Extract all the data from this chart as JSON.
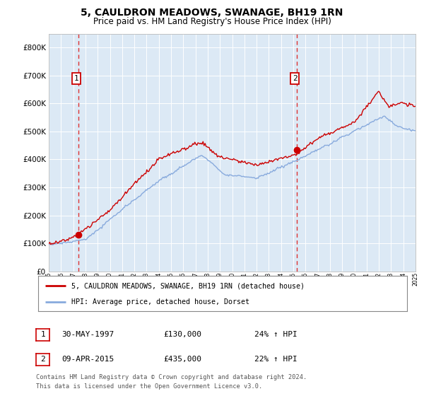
{
  "title": "5, CAULDRON MEADOWS, SWANAGE, BH19 1RN",
  "subtitle": "Price paid vs. HM Land Registry's House Price Index (HPI)",
  "plot_bg_color": "#dce9f5",
  "x_start_year": 1995,
  "x_end_year": 2025,
  "ylim": [
    0,
    850000
  ],
  "yticks": [
    0,
    100000,
    200000,
    300000,
    400000,
    500000,
    600000,
    700000,
    800000
  ],
  "sale1_year": 1997.41,
  "sale1_price": 130000,
  "sale2_year": 2015.27,
  "sale2_price": 435000,
  "red_line_color": "#cc0000",
  "blue_line_color": "#88aadd",
  "dashed_line_color": "#dd3333",
  "marker_color": "#cc0000",
  "legend_label1": "5, CAULDRON MEADOWS, SWANAGE, BH19 1RN (detached house)",
  "legend_label2": "HPI: Average price, detached house, Dorset",
  "table_row1": [
    "1",
    "30-MAY-1997",
    "£130,000",
    "24% ↑ HPI"
  ],
  "table_row2": [
    "2",
    "09-APR-2015",
    "£435,000",
    "22% ↑ HPI"
  ],
  "footer": "Contains HM Land Registry data © Crown copyright and database right 2024.\nThis data is licensed under the Open Government Licence v3.0.",
  "grid_color": "#ffffff",
  "border_color": "#aaaaaa"
}
